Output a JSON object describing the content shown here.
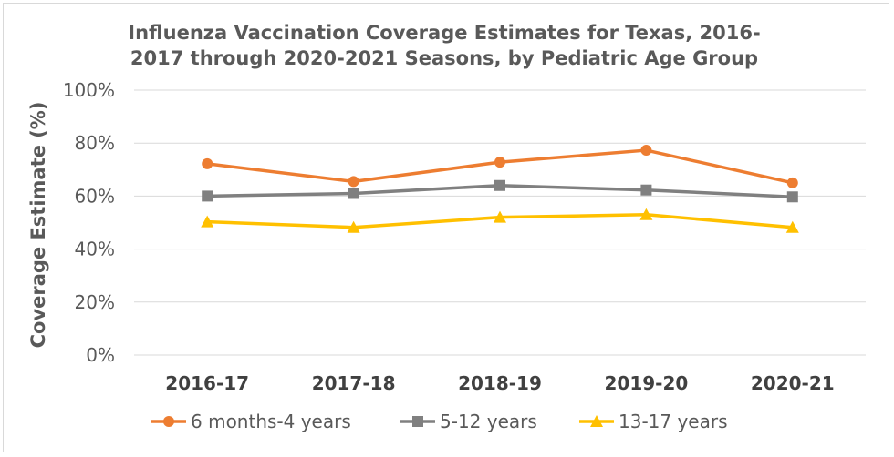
{
  "chart_data": {
    "type": "line",
    "title_lines": [
      "Influenza Vaccination Coverage Estimates for Texas, 2016-",
      "2017 through 2020-2021 Seasons, by Pediatric Age Group"
    ],
    "ylabel": "Coverage Estimate (%)",
    "xlabel": "",
    "categories": [
      "2016-17",
      "2017-18",
      "2018-19",
      "2019-20",
      "2020-21"
    ],
    "ylim": [
      0,
      100
    ],
    "yticks": [
      0,
      20,
      40,
      60,
      80,
      100
    ],
    "ytick_labels": [
      "0%",
      "20%",
      "40%",
      "60%",
      "80%",
      "100%"
    ],
    "grid": true,
    "legend_position": "bottom",
    "series": [
      {
        "name": "6 months-4 years",
        "values": [
          72.2,
          65.5,
          72.8,
          77.3,
          65.0
        ],
        "color": "#ed7d31",
        "marker": "circle"
      },
      {
        "name": "5-12 years",
        "values": [
          60.0,
          61.0,
          64.0,
          62.3,
          59.7
        ],
        "color": "#808080",
        "marker": "square"
      },
      {
        "name": "13-17 years",
        "values": [
          50.3,
          48.2,
          52.0,
          53.0,
          48.2
        ],
        "color": "#ffc000",
        "marker": "triangle"
      }
    ]
  }
}
